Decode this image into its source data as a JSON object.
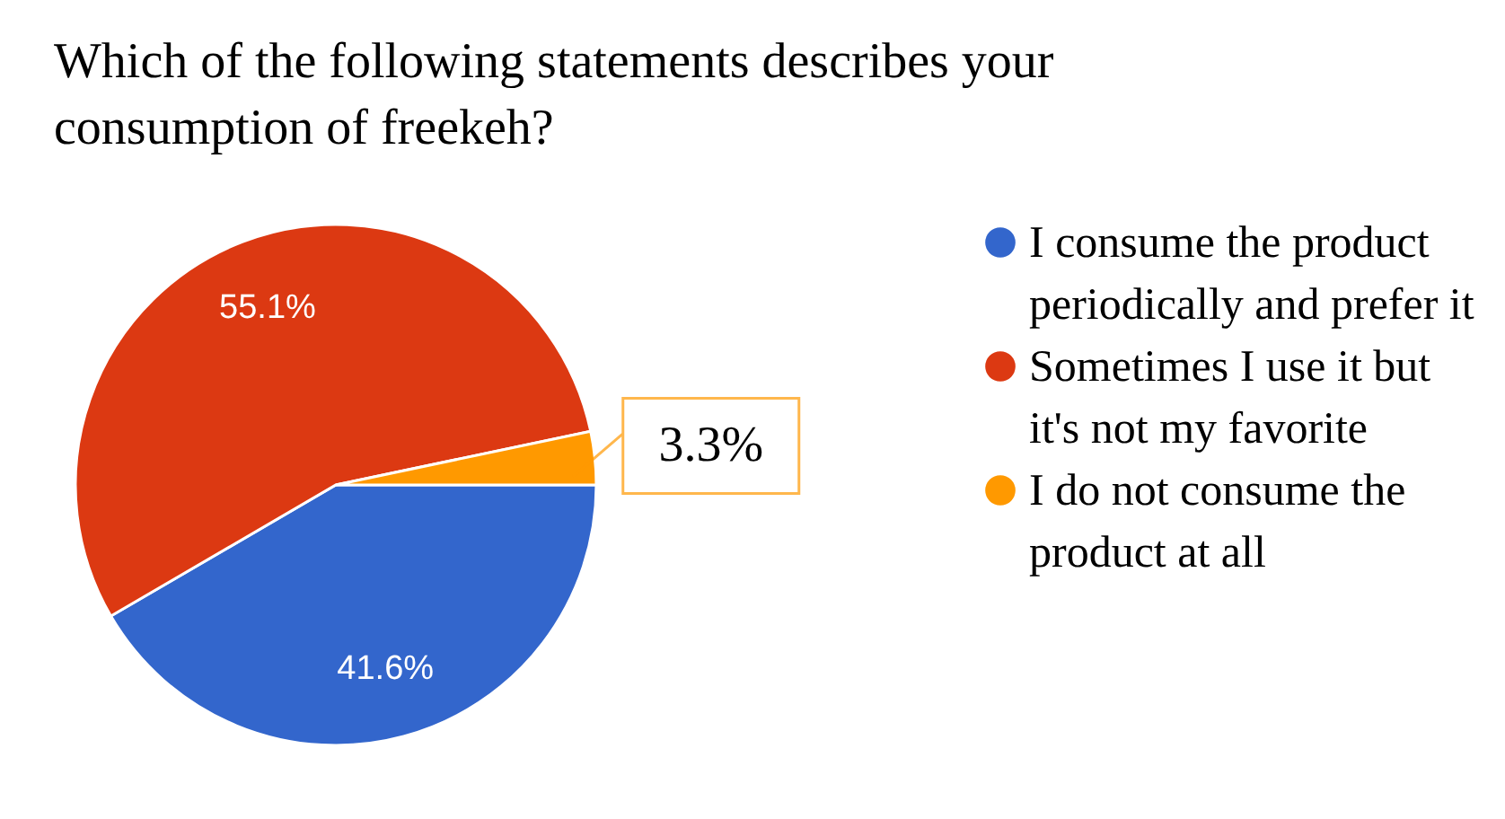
{
  "chart_data": {
    "type": "pie",
    "title": "Which of the following statements describes your consumption of freekeh?",
    "categories": [
      "I consume the product periodically and prefer it",
      "Sometimes I use it but it's not my favorite",
      "I do not consume the product at all"
    ],
    "values": [
      41.6,
      55.1,
      3.3
    ],
    "colors": [
      "#3366cc",
      "#dc3912",
      "#ff9900"
    ],
    "value_labels": [
      "41.6%",
      "55.1%",
      "3.3%"
    ],
    "legend": "right"
  }
}
